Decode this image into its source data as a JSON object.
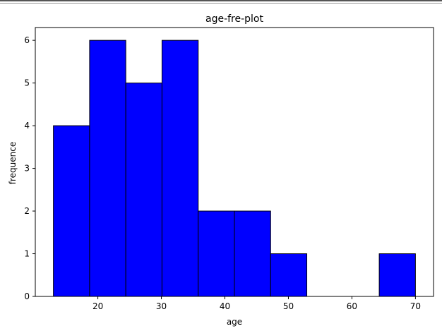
{
  "chart_data": {
    "type": "bar",
    "title": "age-fre-plot",
    "xlabel": "age",
    "ylabel": "frequence",
    "bins": [
      {
        "x0": 13.0,
        "x1": 18.7,
        "value": 4
      },
      {
        "x0": 18.7,
        "x1": 24.4,
        "value": 6
      },
      {
        "x0": 24.4,
        "x1": 30.1,
        "value": 5
      },
      {
        "x0": 30.1,
        "x1": 35.8,
        "value": 6
      },
      {
        "x0": 35.8,
        "x1": 41.5,
        "value": 2
      },
      {
        "x0": 41.5,
        "x1": 47.2,
        "value": 2
      },
      {
        "x0": 47.2,
        "x1": 52.9,
        "value": 1
      },
      {
        "x0": 52.9,
        "x1": 58.6,
        "value": 0
      },
      {
        "x0": 58.6,
        "x1": 64.3,
        "value": 0
      },
      {
        "x0": 64.3,
        "x1": 70.0,
        "value": 1
      }
    ],
    "xlim": [
      10.15,
      72.85
    ],
    "ylim": [
      0,
      6.3
    ],
    "xticks": [
      20,
      30,
      40,
      50,
      60,
      70
    ],
    "yticks": [
      0,
      1,
      2,
      3,
      4,
      5,
      6
    ],
    "bar_color": "#0000ff",
    "edge_color": "#000000",
    "grid": false,
    "legend": "none"
  }
}
